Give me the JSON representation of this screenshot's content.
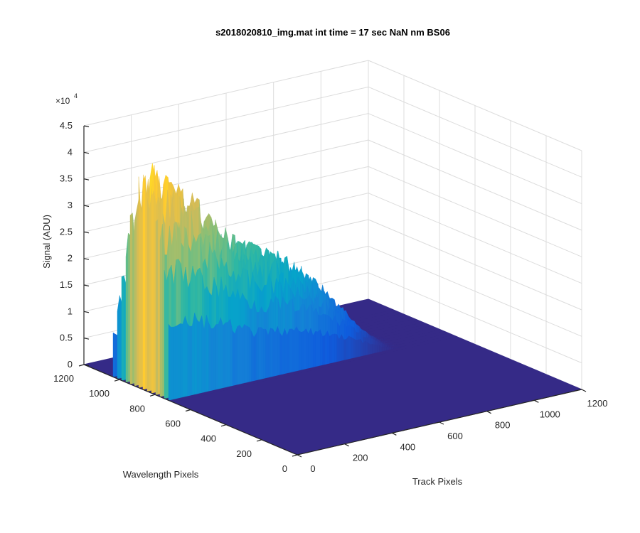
{
  "chart_data": {
    "type": "surface",
    "title": "s2018020810_img.mat int time = 17 sec  NaN nm BS06",
    "xlabel": "Track Pixels",
    "ylabel": "Wavelength Pixels",
    "zlabel": "Signal (ADU)",
    "z_exponent_label": "×10",
    "z_exponent_power": "4",
    "xlim": [
      0,
      1200
    ],
    "ylim": [
      0,
      1200
    ],
    "zlim": [
      0,
      45000
    ],
    "x_ticks": [
      "0",
      "200",
      "400",
      "600",
      "800",
      "1000",
      "1200"
    ],
    "y_ticks": [
      "0",
      "200",
      "400",
      "600",
      "800",
      "1000",
      "1200"
    ],
    "z_ticks": [
      "0",
      "0.5",
      "1",
      "1.5",
      "2",
      "2.5",
      "3",
      "3.5",
      "4",
      "4.5"
    ],
    "grid": true,
    "colormap": "parula",
    "colormap_stops": [
      "#352a87",
      "#0f5cdd",
      "#1481d6",
      "#06a4ca",
      "#2eb7a4",
      "#87bf77",
      "#d1bb59",
      "#fec832",
      "#f9fb0e"
    ],
    "surface": {
      "description_of_values": "signal ridge along track, non-zero only for wavelength pixels roughly 700-1060",
      "track_pixels": [
        0,
        50,
        100,
        150,
        200,
        250,
        300,
        350,
        400,
        450,
        500,
        550,
        600,
        650,
        700,
        750,
        800,
        850,
        900,
        950,
        1000,
        1050,
        1100,
        1150,
        1200
      ],
      "peak_signal_by_track": [
        42000,
        43000,
        40000,
        38000,
        35000,
        33000,
        30000,
        27000,
        24500,
        24000,
        23000,
        21000,
        19500,
        17000,
        14500,
        12000,
        9000,
        5500,
        2500,
        500,
        0,
        0,
        0,
        0,
        0
      ],
      "wavelength_band": [
        700,
        1060
      ],
      "baseline_signal": 0
    }
  }
}
